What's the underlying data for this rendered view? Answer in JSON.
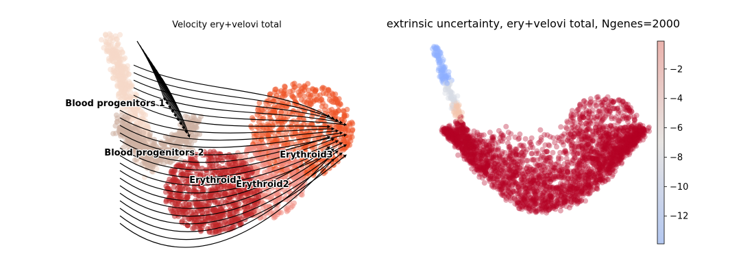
{
  "chart_data": [
    {
      "type": "scatter",
      "title": "Velocity ery+velovi total",
      "clusters": [
        {
          "name": "Blood progenitors 1",
          "color": "#f6d9c8"
        },
        {
          "name": "Blood progenitors 2",
          "color": "#cdb0a2"
        },
        {
          "name": "Erythroid1",
          "color": "#c0282a"
        },
        {
          "name": "Erythroid2",
          "color": "#f08a80"
        },
        {
          "name": "Erythroid3",
          "color": "#ee5628"
        }
      ],
      "overlay": "velocity streamlines",
      "axes": "off"
    },
    {
      "type": "scatter",
      "title": "extrinsic uncertainty, ery+velovi total, Ngenes=2000",
      "colormap": "coolwarm",
      "colorbar": {
        "ticks": [
          {
            "value": -2,
            "label": "−2"
          },
          {
            "value": -4,
            "label": "−4"
          },
          {
            "value": -6,
            "label": "−6"
          },
          {
            "value": -8,
            "label": "−8"
          },
          {
            "value": -10,
            "label": "−10"
          },
          {
            "value": -12,
            "label": "−12"
          }
        ],
        "range": [
          -13.9,
          -0.1
        ]
      },
      "axes": "off"
    }
  ]
}
